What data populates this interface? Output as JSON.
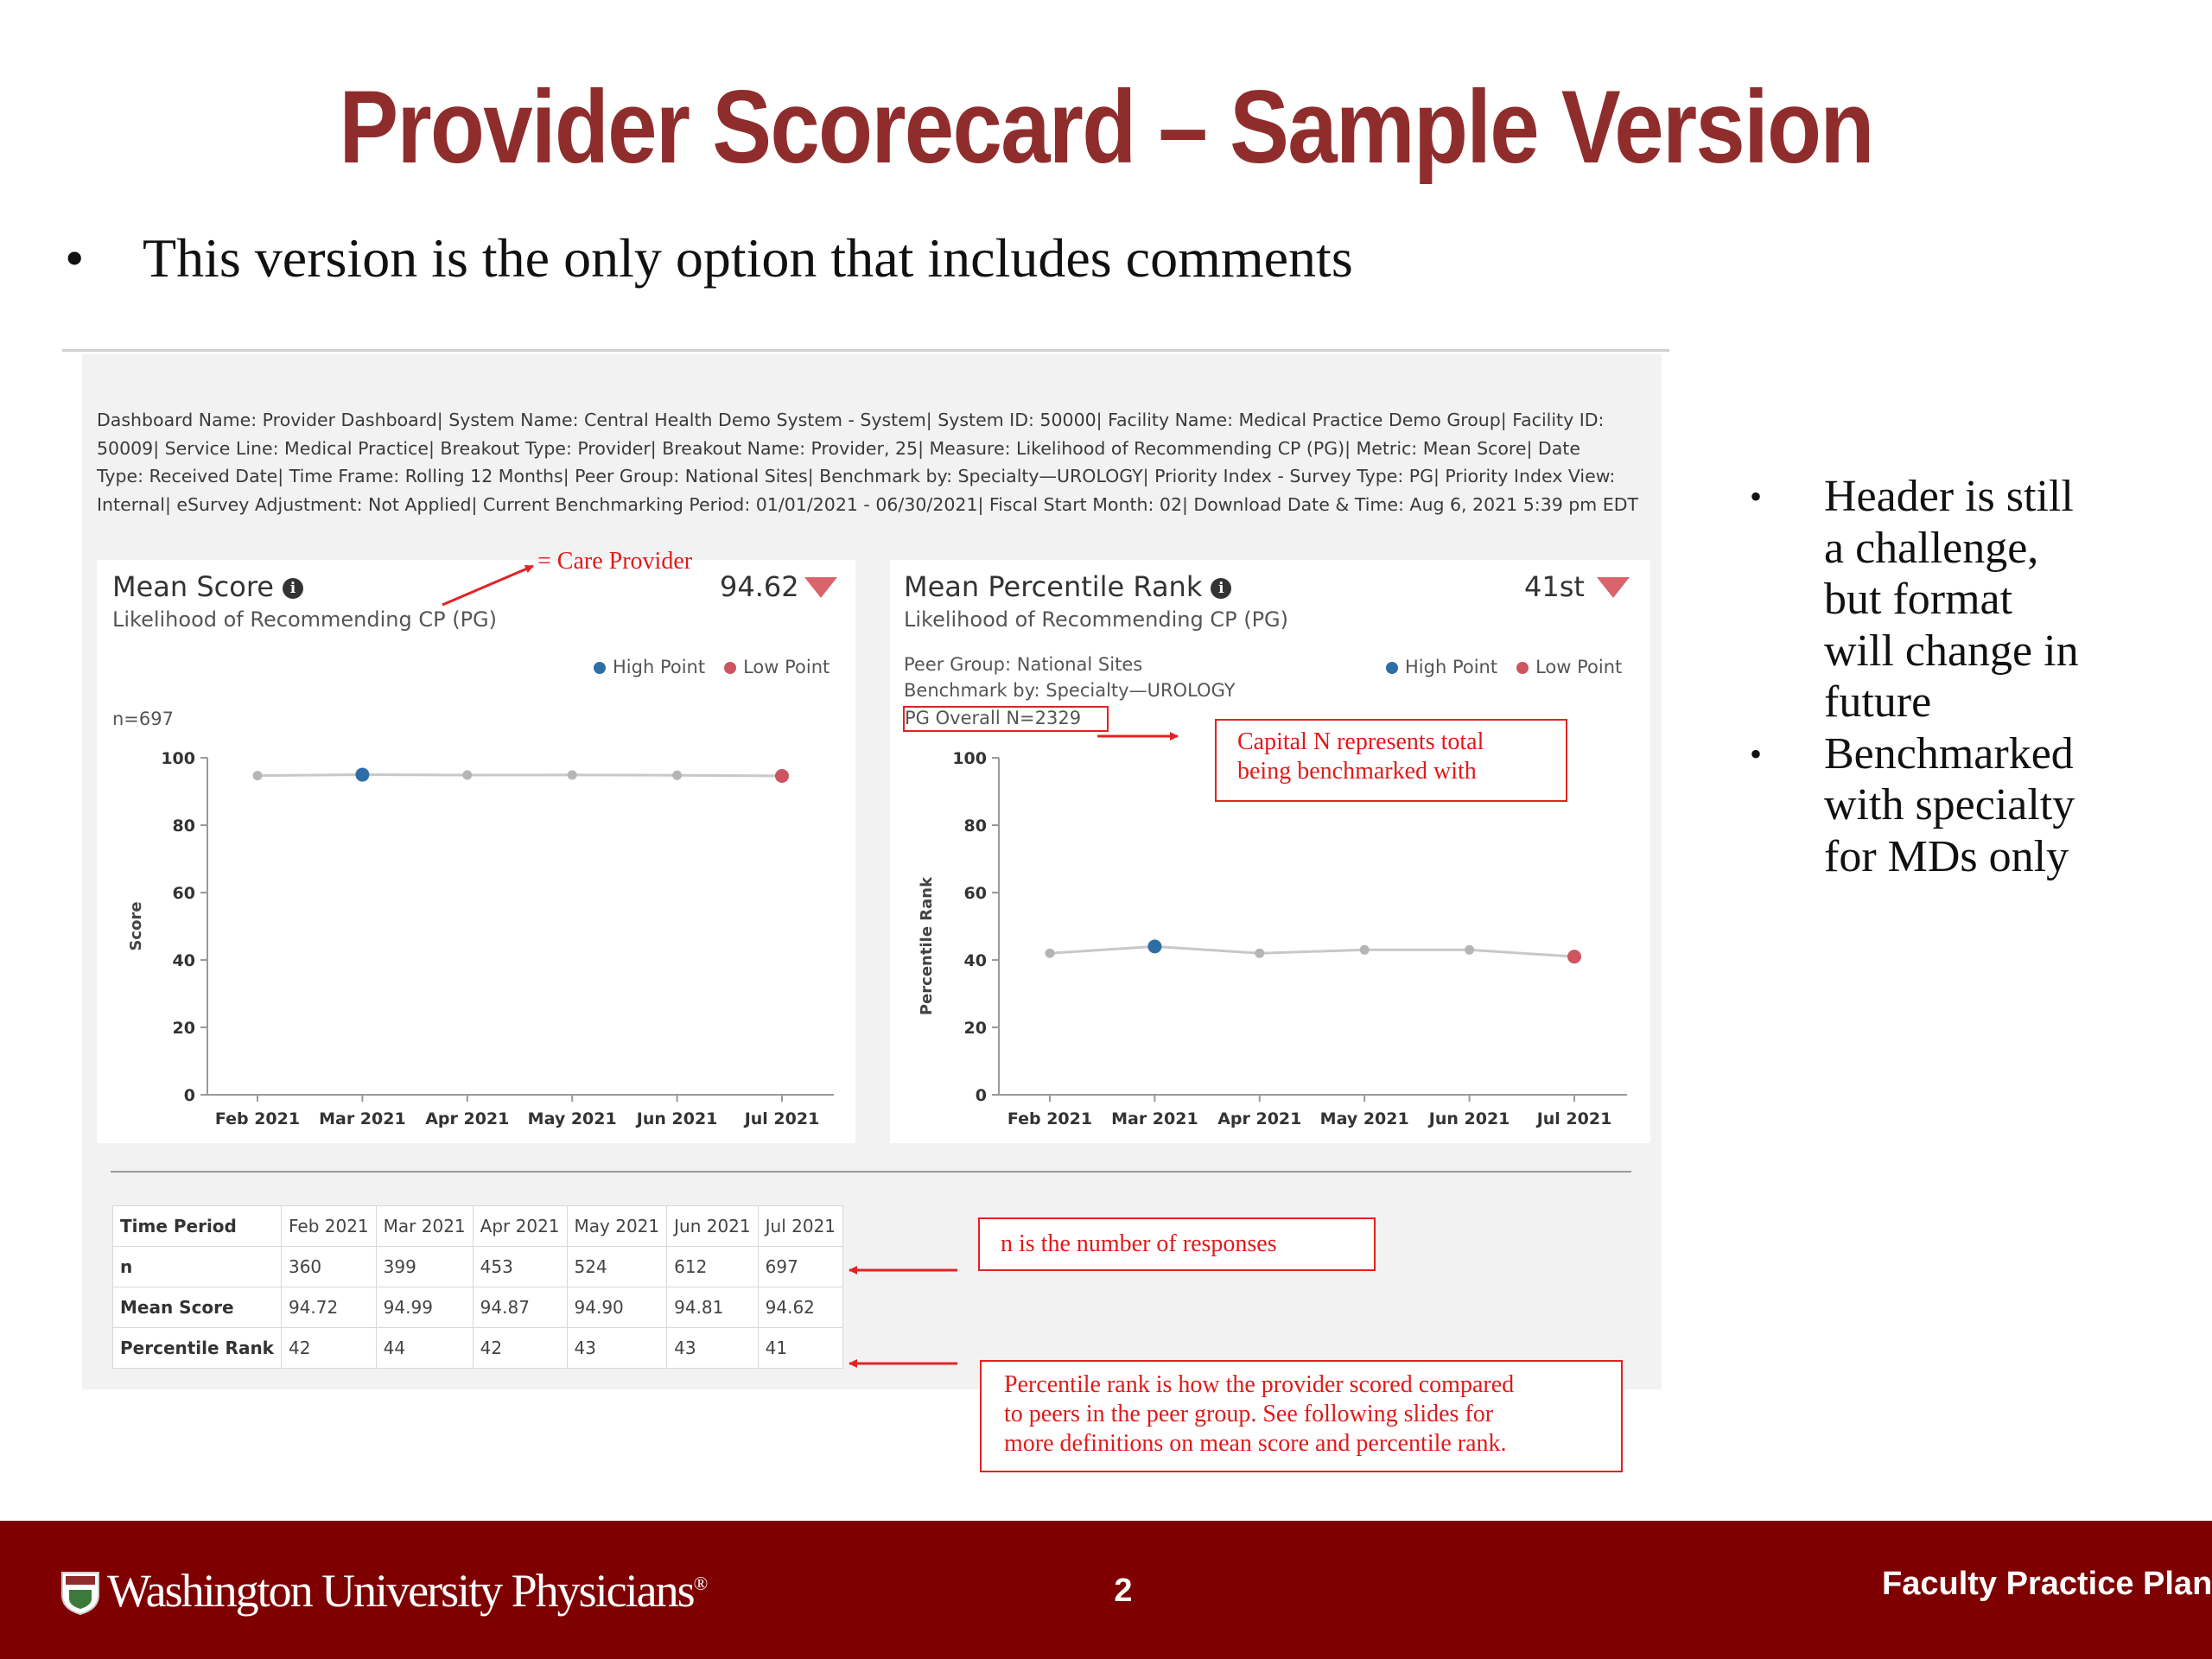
{
  "slide": {
    "title": "Provider Scorecard – Sample Version",
    "bullet": "This version is the only option that includes comments",
    "page_number": "2",
    "footer_org": "Washington University Physicians",
    "footer_right": "Faculty Practice Plan"
  },
  "meta_lines": [
    "Dashboard Name: Provider Dashboard|   System Name: Central Health Demo System - System|   System ID: 50000|   Facility Name: Medical Practice Demo Group|   Facility ID:",
    "50009|   Service Line: Medical Practice|   Breakout Type: Provider|   Breakout Name: Provider, 25|   Measure: Likelihood of Recommending CP (PG)|   Metric: Mean Score|   Date",
    "Type: Received Date|   Time Frame: Rolling 12 Months|   Peer Group: National Sites|   Benchmark by: Specialty—UROLOGY|   Priority Index - Survey Type: PG|   Priority Index View:",
    "Internal|   eSurvey Adjustment: Not Applied|   Current Benchmarking Period: 01/01/2021 - 06/30/2021|   Fiscal Start Month: 02|   Download Date & Time: Aug 6, 2021 5:39 pm EDT"
  ],
  "mean_card": {
    "title": "Mean Score",
    "subtitle": "Likelihood of Recommending CP (PG)",
    "value": "94.62",
    "n_label": "n=697"
  },
  "rank_card": {
    "title": "Mean Percentile Rank",
    "subtitle": "Likelihood of Recommending CP (PG)",
    "value": "41st",
    "peer_group": "Peer Group: National Sites",
    "benchmark": "Benchmark by: Specialty—UROLOGY",
    "pg_overall": "PG Overall N=2329"
  },
  "legend": {
    "high": "High Point",
    "low": "Low Point"
  },
  "annotations": {
    "care_provider": "= Care Provider",
    "capital_n_1": "Capital N represents total",
    "capital_n_2": "being benchmarked with",
    "n_responses": "n is the number of responses",
    "pr_1": "Percentile rank is how the provider scored compared",
    "pr_2": "to peers in the peer group.  See following slides for",
    "pr_3": "more definitions on mean score and percentile rank."
  },
  "chart_data": [
    {
      "type": "line",
      "x": [
        "Feb 2021",
        "Mar 2021",
        "Apr 2021",
        "May 2021",
        "Jun 2021",
        "Jul 2021"
      ],
      "values": [
        94.72,
        94.99,
        94.87,
        94.9,
        94.81,
        94.62
      ],
      "ylabel": "Score",
      "ylim": [
        0,
        100
      ],
      "yticks": [
        "0",
        "20",
        "40",
        "60",
        "80",
        "100"
      ],
      "high_index": 1,
      "low_index": 5,
      "colors": {
        "line": "#c8c8c8",
        "point": "#b5b5b5",
        "high": "#2e6ea6",
        "low": "#cc5560"
      }
    },
    {
      "type": "line",
      "x": [
        "Feb 2021",
        "Mar 2021",
        "Apr 2021",
        "May 2021",
        "Jun 2021",
        "Jul 2021"
      ],
      "values": [
        42,
        44,
        42,
        43,
        43,
        41
      ],
      "ylabel": "Percentile Rank",
      "ylim": [
        0,
        100
      ],
      "yticks": [
        "0",
        "20",
        "40",
        "60",
        "80",
        "100"
      ],
      "high_index": 1,
      "low_index": 5,
      "colors": {
        "line": "#c8c8c8",
        "point": "#b5b5b5",
        "high": "#2e6ea6",
        "low": "#cc5560"
      }
    }
  ],
  "table": {
    "header": [
      "Time Period",
      "Feb 2021",
      "Mar 2021",
      "Apr 2021",
      "May 2021",
      "Jun 2021",
      "Jul 2021"
    ],
    "rows": [
      {
        "label": "n",
        "cells": [
          "360",
          "399",
          "453",
          "524",
          "612",
          "697"
        ]
      },
      {
        "label": "Mean Score",
        "cells": [
          "94.72",
          "94.99",
          "94.87",
          "94.90",
          "94.81",
          "94.62"
        ]
      },
      {
        "label": "Percentile Rank",
        "cells": [
          "42",
          "44",
          "42",
          "43",
          "43",
          "41"
        ]
      }
    ]
  },
  "right_bullets": [
    [
      "Header is still",
      "a challenge,",
      "but format",
      "will change in",
      "future"
    ],
    [
      "Benchmarked",
      "with specialty",
      "for MDs only"
    ]
  ]
}
